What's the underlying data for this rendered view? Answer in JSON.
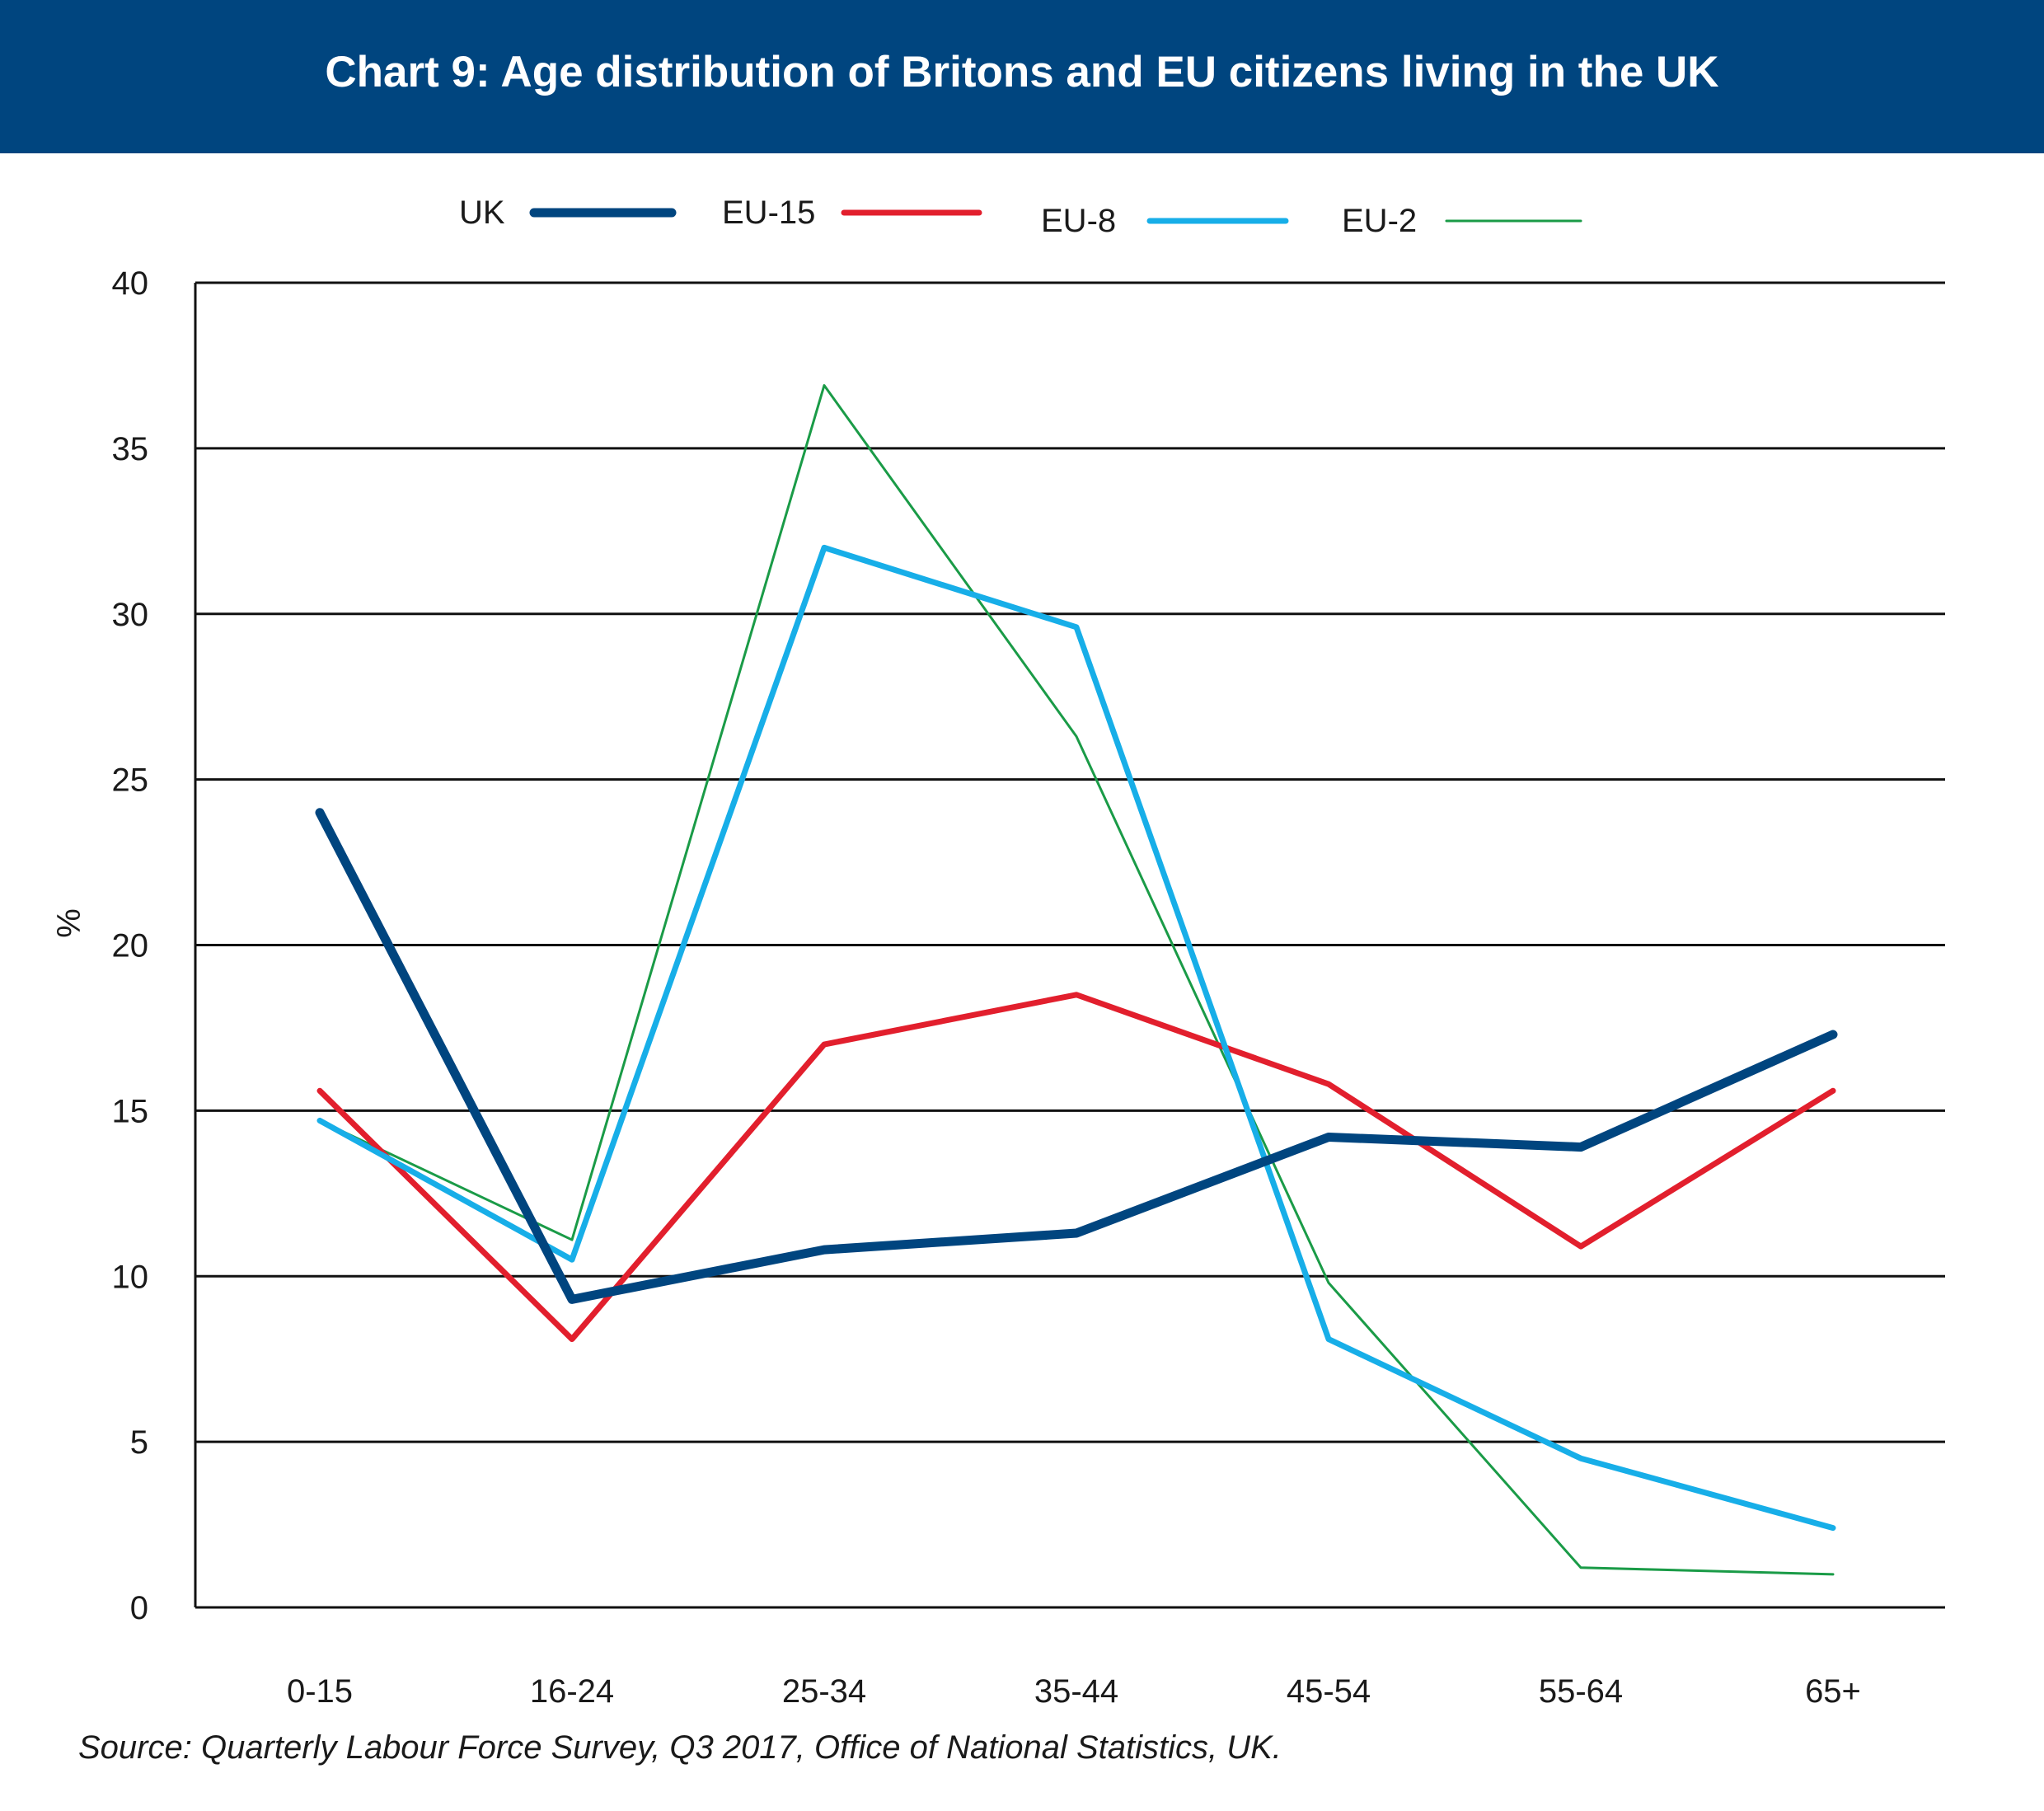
{
  "header": {
    "title": "Chart 9: Age distribution of Britons and EU citizens living in the UK"
  },
  "source": "Source: Quarterly Labour Force Survey, Q3 2017, Office of National Statistics, UK.",
  "chart_data": {
    "type": "line",
    "title": "Chart 9: Age distribution of Britons and EU citizens living in the UK",
    "xlabel": "",
    "ylabel": "%",
    "categories": [
      "0-15",
      "16-24",
      "25-34",
      "35-44",
      "45-54",
      "55-64",
      "65+"
    ],
    "ylim": [
      0,
      40
    ],
    "yticks": [
      0,
      5,
      10,
      15,
      20,
      25,
      30,
      35,
      40
    ],
    "grid": true,
    "legend_position": "top",
    "series": [
      {
        "name": "UK",
        "color": "#00457f",
        "values": [
          24.0,
          9.3,
          10.8,
          11.3,
          14.2,
          13.9,
          17.3
        ]
      },
      {
        "name": "EU-15",
        "color": "#e21f2d",
        "values": [
          15.6,
          8.1,
          17.0,
          18.5,
          15.8,
          10.9,
          15.6
        ]
      },
      {
        "name": "EU-8",
        "color": "#17aee8",
        "values": [
          14.7,
          10.5,
          32.0,
          29.6,
          8.1,
          4.5,
          2.4
        ]
      },
      {
        "name": "EU-2",
        "color": "#1a9b47",
        "values": [
          14.7,
          11.1,
          36.9,
          26.3,
          9.8,
          1.2,
          1.0
        ]
      }
    ]
  }
}
